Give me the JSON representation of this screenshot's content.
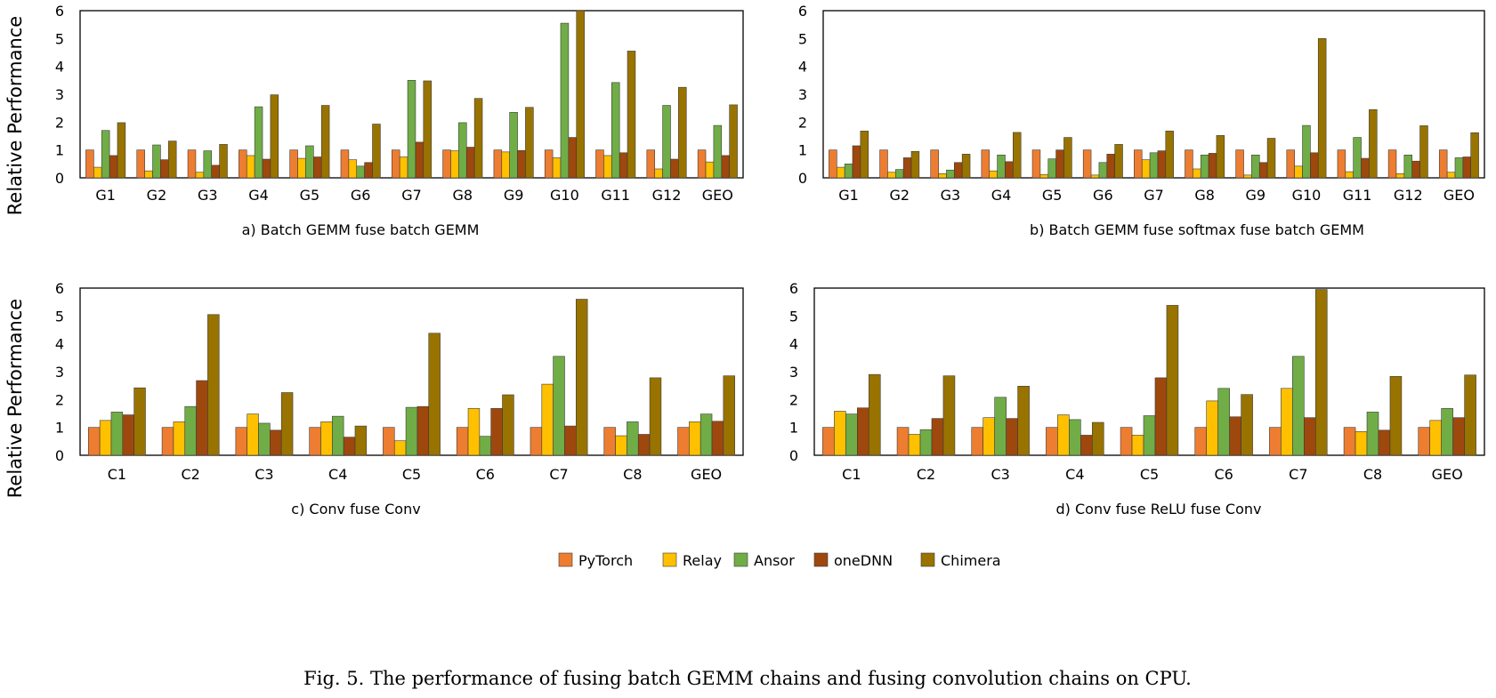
{
  "caption": "Fig. 5.  The performance of fusing batch GEMM chains and fusing convolution chains on CPU.",
  "colors": {
    "PyTorch": "#ed7d31",
    "Relay": "#ffc000",
    "Ansor": "#70ad47",
    "oneDNN": "#9e480e",
    "Chimera": "#997300"
  },
  "legend": [
    "PyTorch",
    "Relay",
    "Ansor",
    "oneDNN",
    "Chimera"
  ],
  "chart_data": [
    {
      "type": "bar",
      "title": "a) Batch GEMM fuse batch GEMM",
      "ylabel": "Relative Performance",
      "ylim": [
        0,
        6
      ],
      "yticks": [
        "0",
        "1",
        "2",
        "3",
        "4",
        "5",
        "6"
      ],
      "categories": [
        "G1",
        "G2",
        "G3",
        "G4",
        "G5",
        "G6",
        "G7",
        "G8",
        "G9",
        "G10",
        "G11",
        "G12",
        "GEO"
      ],
      "series": [
        {
          "name": "PyTorch",
          "values": [
            1,
            1,
            1,
            1,
            1,
            1,
            1,
            1,
            1,
            1,
            1,
            1,
            1
          ]
        },
        {
          "name": "Relay",
          "values": [
            0.38,
            0.25,
            0.2,
            0.8,
            0.7,
            0.65,
            0.75,
            0.97,
            0.93,
            0.72,
            0.8,
            0.32,
            0.57
          ]
        },
        {
          "name": "Ansor",
          "values": [
            1.7,
            1.18,
            0.97,
            2.55,
            1.15,
            0.42,
            3.5,
            1.98,
            2.35,
            5.55,
            3.42,
            2.6,
            1.88
          ]
        },
        {
          "name": "oneDNN",
          "values": [
            0.8,
            0.65,
            0.45,
            0.67,
            0.75,
            0.55,
            1.28,
            1.1,
            0.98,
            1.45,
            0.9,
            0.67,
            0.8
          ]
        },
        {
          "name": "Chimera",
          "values": [
            1.98,
            1.32,
            1.2,
            2.98,
            2.6,
            1.93,
            3.48,
            2.85,
            2.53,
            6.0,
            4.55,
            3.25,
            2.62
          ]
        }
      ]
    },
    {
      "type": "bar",
      "title": "b) Batch GEMM fuse softmax fuse batch GEMM",
      "ylabel": "",
      "ylim": [
        0,
        6
      ],
      "yticks": [
        "0",
        "1",
        "2",
        "3",
        "4",
        "5",
        "6"
      ],
      "categories": [
        "G1",
        "G2",
        "G3",
        "G4",
        "G5",
        "G6",
        "G7",
        "G8",
        "G9",
        "G10",
        "G11",
        "G12",
        "GEO"
      ],
      "series": [
        {
          "name": "PyTorch",
          "values": [
            1,
            1,
            1,
            1,
            1,
            1,
            1,
            1,
            1,
            1,
            1,
            1,
            1
          ]
        },
        {
          "name": "Relay",
          "values": [
            0.38,
            0.2,
            0.15,
            0.25,
            0.12,
            0.1,
            0.65,
            0.32,
            0.1,
            0.42,
            0.22,
            0.15,
            0.2
          ]
        },
        {
          "name": "Ansor",
          "values": [
            0.5,
            0.3,
            0.28,
            0.82,
            0.68,
            0.55,
            0.9,
            0.82,
            0.82,
            1.88,
            1.45,
            0.82,
            0.72
          ]
        },
        {
          "name": "oneDNN",
          "values": [
            1.15,
            0.72,
            0.55,
            0.58,
            1.0,
            0.85,
            0.97,
            0.88,
            0.55,
            0.9,
            0.7,
            0.6,
            0.75
          ]
        },
        {
          "name": "Chimera",
          "values": [
            1.68,
            0.95,
            0.85,
            1.63,
            1.45,
            1.2,
            1.68,
            1.52,
            1.42,
            5.0,
            2.45,
            1.87,
            1.62
          ]
        }
      ]
    },
    {
      "type": "bar",
      "title": "c) Conv fuse Conv",
      "ylabel": "Relative Performance",
      "ylim": [
        0,
        6
      ],
      "yticks": [
        "0",
        "1",
        "2",
        "3",
        "4",
        "5",
        "6"
      ],
      "categories": [
        "C1",
        "C2",
        "C3",
        "C4",
        "C5",
        "C6",
        "C7",
        "C8",
        "GEO"
      ],
      "series": [
        {
          "name": "PyTorch",
          "values": [
            1,
            1,
            1,
            1,
            1,
            1,
            1,
            1,
            1
          ]
        },
        {
          "name": "Relay",
          "values": [
            1.25,
            1.2,
            1.48,
            1.2,
            0.52,
            1.68,
            2.55,
            0.7,
            1.2
          ]
        },
        {
          "name": "Ansor",
          "values": [
            1.55,
            1.75,
            1.15,
            1.4,
            1.72,
            0.68,
            3.55,
            1.2,
            1.48
          ]
        },
        {
          "name": "oneDNN",
          "values": [
            1.45,
            2.68,
            0.9,
            0.65,
            1.75,
            1.68,
            1.05,
            0.75,
            1.22
          ]
        },
        {
          "name": "Chimera",
          "values": [
            2.42,
            5.05,
            2.25,
            1.05,
            4.38,
            2.17,
            5.6,
            2.78,
            2.85
          ]
        }
      ]
    },
    {
      "type": "bar",
      "title": "d) Conv fuse ReLU fuse Conv",
      "ylabel": "",
      "ylim": [
        0,
        6
      ],
      "yticks": [
        "0",
        "1",
        "2",
        "3",
        "4",
        "5",
        "6"
      ],
      "categories": [
        "C1",
        "C2",
        "C3",
        "C4",
        "C5",
        "C6",
        "C7",
        "C8",
        "GEO"
      ],
      "series": [
        {
          "name": "PyTorch",
          "values": [
            1,
            1,
            1,
            1,
            1,
            1,
            1,
            1,
            1
          ]
        },
        {
          "name": "Relay",
          "values": [
            1.58,
            0.75,
            1.35,
            1.45,
            0.72,
            1.95,
            2.4,
            0.85,
            1.25
          ]
        },
        {
          "name": "Ansor",
          "values": [
            1.48,
            0.92,
            2.08,
            1.28,
            1.42,
            2.4,
            3.55,
            1.55,
            1.68
          ]
        },
        {
          "name": "oneDNN",
          "values": [
            1.7,
            1.32,
            1.32,
            0.72,
            2.78,
            1.38,
            1.35,
            0.9,
            1.35
          ]
        },
        {
          "name": "Chimera",
          "values": [
            2.9,
            2.85,
            2.48,
            1.18,
            5.38,
            2.18,
            5.95,
            2.83,
            2.88
          ]
        }
      ]
    }
  ]
}
